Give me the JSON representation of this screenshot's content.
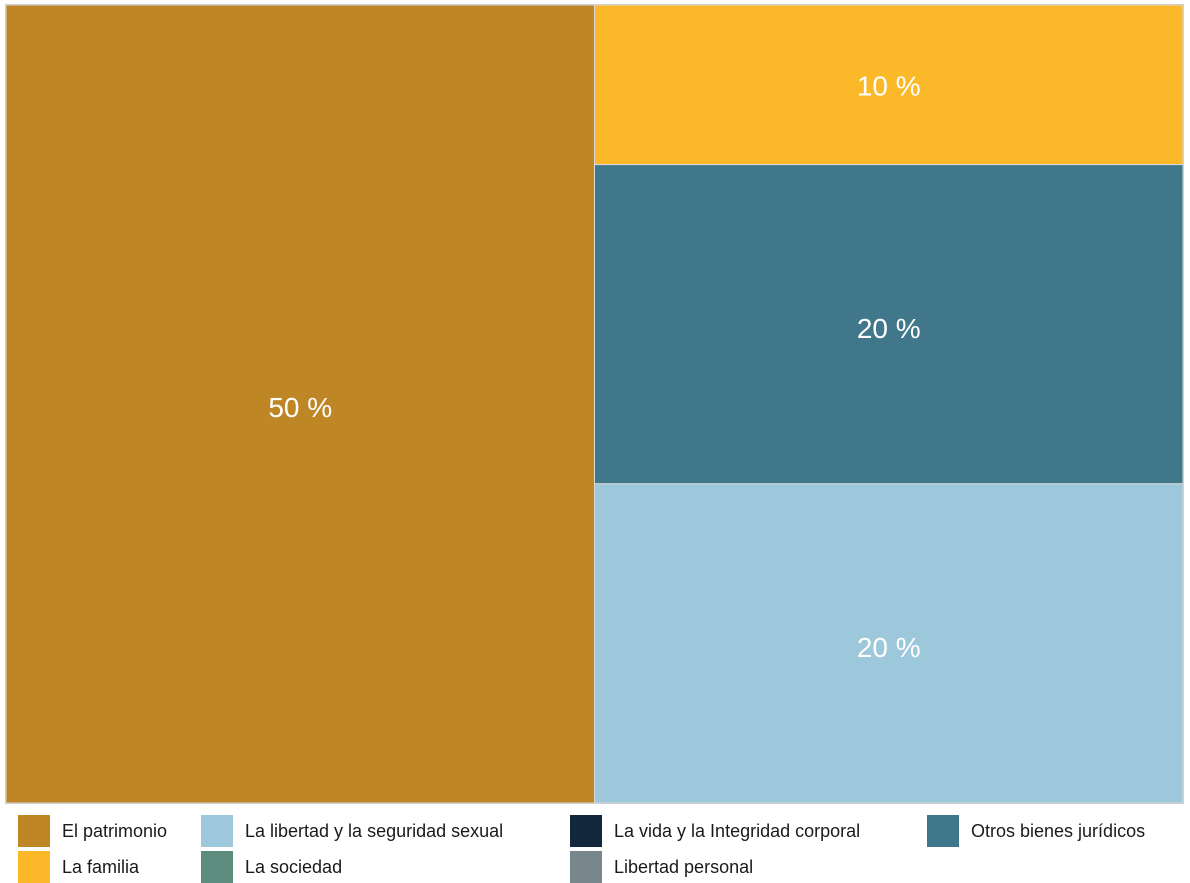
{
  "chart_data": {
    "type": "treemap",
    "title": "",
    "items": [
      {
        "name": "El patrimonio",
        "value": 50,
        "label": "50 %",
        "color": "#BE8625"
      },
      {
        "name": "La familia",
        "value": 10,
        "label": "10 %",
        "color": "#FBB92A"
      },
      {
        "name": "Otros bienes jurídicos",
        "value": 20,
        "label": "20 %",
        "color": "#40778A"
      },
      {
        "name": "La libertad y la seguridad sexual",
        "value": 20,
        "label": "20 %",
        "color": "#9DC7DA"
      }
    ],
    "legend": {
      "position": "bottom",
      "rows": [
        [
          {
            "label": "El patrimonio",
            "color": "#BE8625"
          },
          {
            "label": "La libertad y la seguridad sexual",
            "color": "#9DC7DA"
          },
          {
            "label": "La vida y la Integridad corporal",
            "color": "#13283D"
          },
          {
            "label": "Otros bienes jurídicos",
            "color": "#40778A"
          }
        ],
        [
          {
            "label": "La familia",
            "color": "#FBB92A"
          },
          {
            "label": "La sociedad",
            "color": "#5C8C7E"
          },
          {
            "label": "Libertad personal",
            "color": "#7A868E"
          }
        ]
      ]
    }
  }
}
